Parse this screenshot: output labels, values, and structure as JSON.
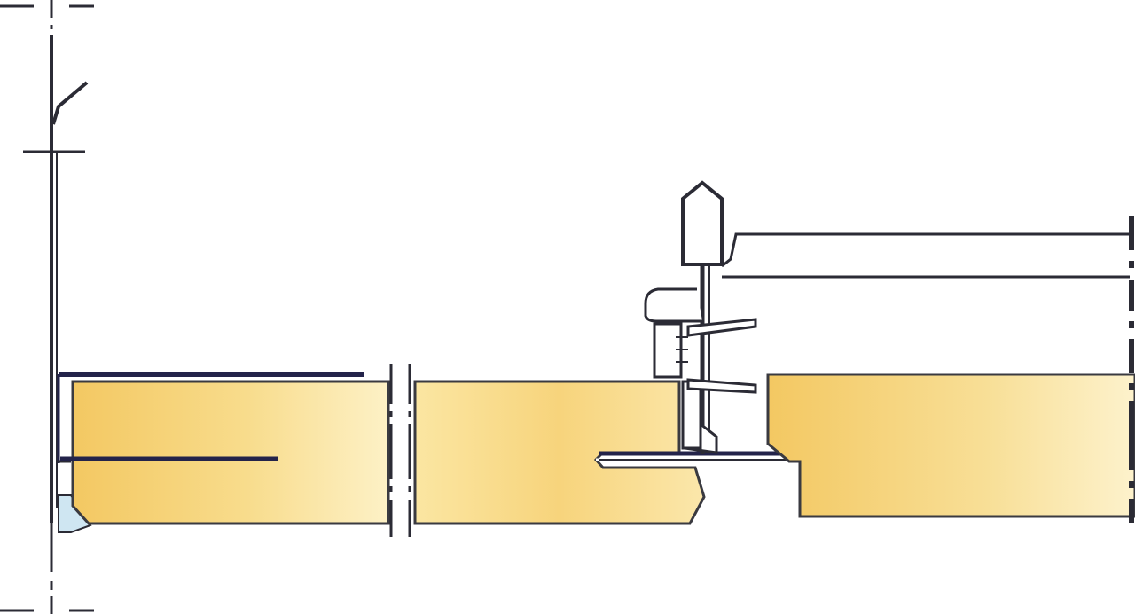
{
  "diagram": {
    "kind": "ceiling-tile-edge-section",
    "colors": {
      "line": "#2b2b35",
      "wall_line": "#3a3a40",
      "tile_dark": "#f2c55c",
      "tile_light": "#fbeaae",
      "tile_edge": "#fdf3cc",
      "grid_profile": "#23234a",
      "trim_fill": "#cfe6f2"
    },
    "components": [
      {
        "id": "wall",
        "label_icon": "wall-line"
      },
      {
        "id": "edge-trim",
        "label_icon": "angle-trim"
      },
      {
        "id": "tile-left",
        "label_icon": "ceiling-tile"
      },
      {
        "id": "tile-right",
        "label_icon": "ceiling-tile"
      },
      {
        "id": "hanger-clip",
        "label_icon": "suspension-clip"
      },
      {
        "id": "carrier-channel",
        "label_icon": "carrier-channel"
      }
    ]
  }
}
